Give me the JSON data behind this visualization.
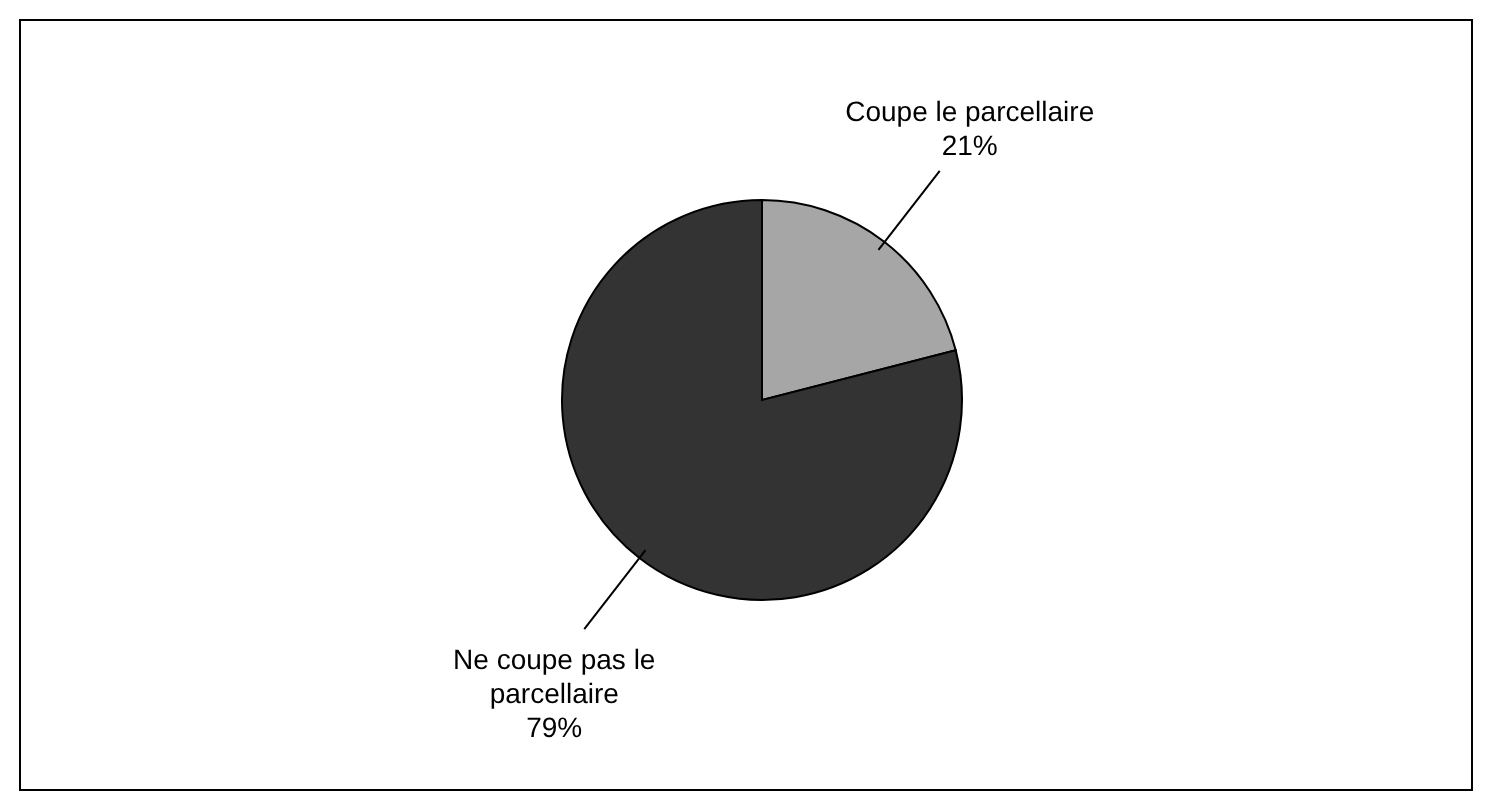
{
  "chart_data": {
    "type": "pie",
    "categories": [
      "Coupe le parcellaire",
      "Ne coupe pas le parcellaire"
    ],
    "values": [
      21,
      79
    ],
    "colors": [
      "#a6a6a6",
      "#333333"
    ],
    "value_labels": [
      "21%",
      "79%"
    ]
  }
}
